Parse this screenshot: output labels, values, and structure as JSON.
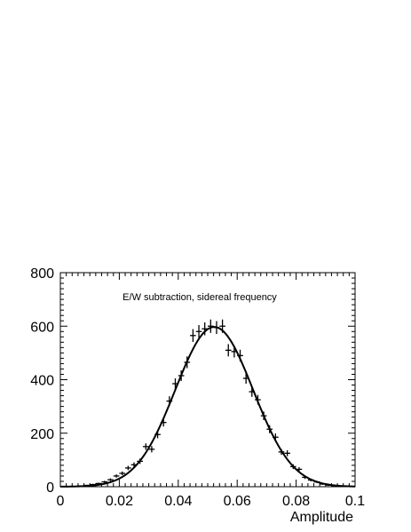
{
  "chart_data": {
    "type": "scatter",
    "title": "",
    "annotation": "E/W subtraction, sidereal frequency",
    "xlabel": "Amplitude",
    "ylabel": "",
    "xlim": [
      0,
      0.1
    ],
    "ylim": [
      0,
      800
    ],
    "x_ticks": [
      0,
      0.02,
      0.04,
      0.06,
      0.08,
      0.1
    ],
    "x_tick_labels": [
      "0",
      "0.02",
      "0.04",
      "0.06",
      "0.08",
      "0.1"
    ],
    "y_ticks": [
      0,
      200,
      400,
      600,
      800
    ],
    "y_tick_labels": [
      "0",
      "200",
      "400",
      "600",
      "800"
    ],
    "grid": false,
    "series": [
      {
        "kind": "points-with-error-bars",
        "x": [
          0.005,
          0.007,
          0.009,
          0.011,
          0.013,
          0.015,
          0.017,
          0.019,
          0.021,
          0.023,
          0.025,
          0.027,
          0.029,
          0.031,
          0.033,
          0.035,
          0.037,
          0.039,
          0.041,
          0.043,
          0.045,
          0.047,
          0.049,
          0.051,
          0.053,
          0.055,
          0.057,
          0.059,
          0.061,
          0.063,
          0.065,
          0.067,
          0.069,
          0.071,
          0.073,
          0.075,
          0.077,
          0.079,
          0.081,
          0.083,
          0.085,
          0.087,
          0.089,
          0.091,
          0.093,
          0.095
        ],
        "y": [
          1,
          3,
          5,
          8,
          12,
          18,
          26,
          40,
          50,
          70,
          82,
          95,
          150,
          140,
          195,
          240,
          320,
          385,
          415,
          465,
          565,
          580,
          590,
          600,
          595,
          600,
          510,
          505,
          490,
          405,
          355,
          325,
          265,
          215,
          185,
          130,
          125,
          75,
          65,
          35,
          25,
          18,
          10,
          6,
          3,
          1
        ],
        "y_err": [
          1,
          2,
          2,
          3,
          3,
          4,
          5,
          6,
          7,
          8,
          9,
          10,
          12,
          12,
          14,
          15,
          18,
          20,
          20,
          22,
          24,
          24,
          24,
          25,
          24,
          25,
          23,
          22,
          22,
          20,
          19,
          18,
          16,
          15,
          14,
          11,
          11,
          9,
          8,
          6,
          5,
          4,
          3,
          3,
          2,
          1
        ],
        "x_halfwidth": 0.001
      },
      {
        "kind": "fit-curve",
        "model": "gaussian",
        "amplitude": 597,
        "mean": 0.0522,
        "sigma": 0.0132
      }
    ]
  }
}
